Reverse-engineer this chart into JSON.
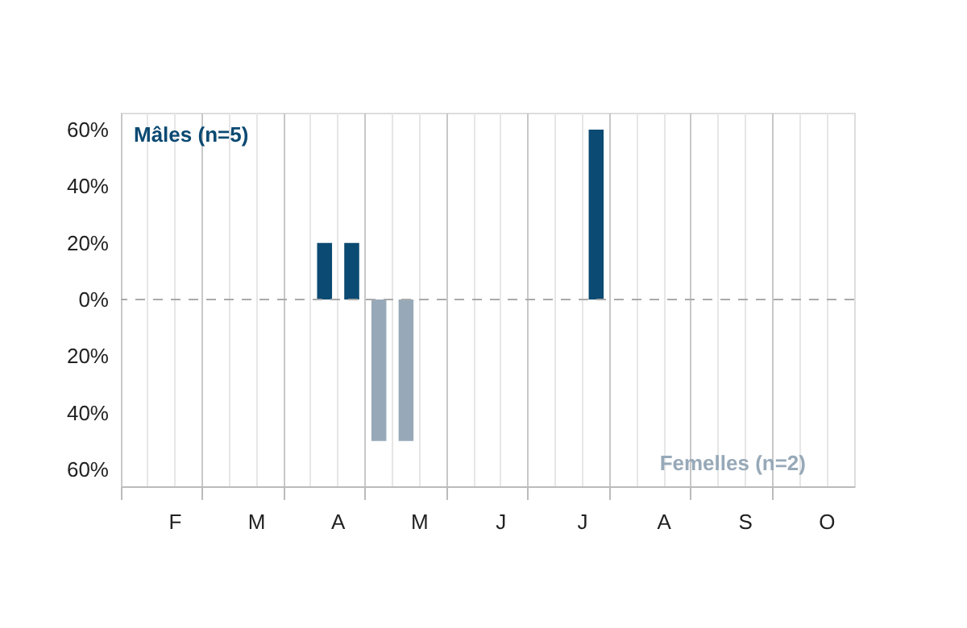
{
  "chart_data": {
    "type": "bar",
    "categories": [
      null,
      "F",
      null,
      null,
      "M",
      null,
      null,
      "A",
      null,
      null,
      "M",
      null,
      null,
      "J",
      null,
      null,
      "J",
      null,
      null,
      "A",
      null,
      null,
      "S",
      null,
      null,
      "O",
      null
    ],
    "series": [
      {
        "name": "Mâles (n=5)",
        "color": "#0b4a72",
        "values": [
          null,
          null,
          null,
          null,
          null,
          null,
          null,
          20,
          20,
          null,
          null,
          null,
          null,
          null,
          null,
          null,
          null,
          60,
          null,
          null,
          null,
          null,
          null,
          null,
          null,
          null,
          null
        ]
      },
      {
        "name": "Femelles (n=2)",
        "color": "#97a9b8",
        "values": [
          null,
          null,
          null,
          null,
          null,
          null,
          null,
          null,
          null,
          -50,
          -50,
          null,
          null,
          null,
          null,
          null,
          null,
          null,
          null,
          null,
          null,
          null,
          null,
          null,
          null,
          null,
          null
        ]
      }
    ],
    "ylim": [
      -66,
      66
    ],
    "yticks": [
      {
        "value": 60,
        "label": "60%"
      },
      {
        "value": 40,
        "label": "40%"
      },
      {
        "value": 20,
        "label": "20%"
      },
      {
        "value": 0,
        "label": "0%"
      },
      {
        "value": -20,
        "label": "20%"
      },
      {
        "value": -40,
        "label": "40%"
      },
      {
        "value": -60,
        "label": "60%"
      }
    ],
    "ref_lines": [
      {
        "axis": "y",
        "value": 0,
        "color": "#aaaaaa",
        "line_style": "dashed"
      }
    ],
    "grid": "x"
  }
}
